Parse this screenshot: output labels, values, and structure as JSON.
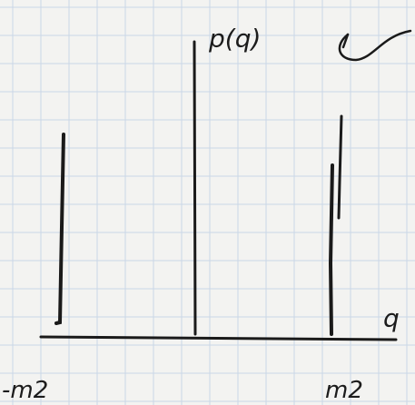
{
  "labels": {
    "y_axis": "p(q)",
    "x_axis": "q",
    "left_point": "-m2",
    "right_point": "m2"
  }
}
